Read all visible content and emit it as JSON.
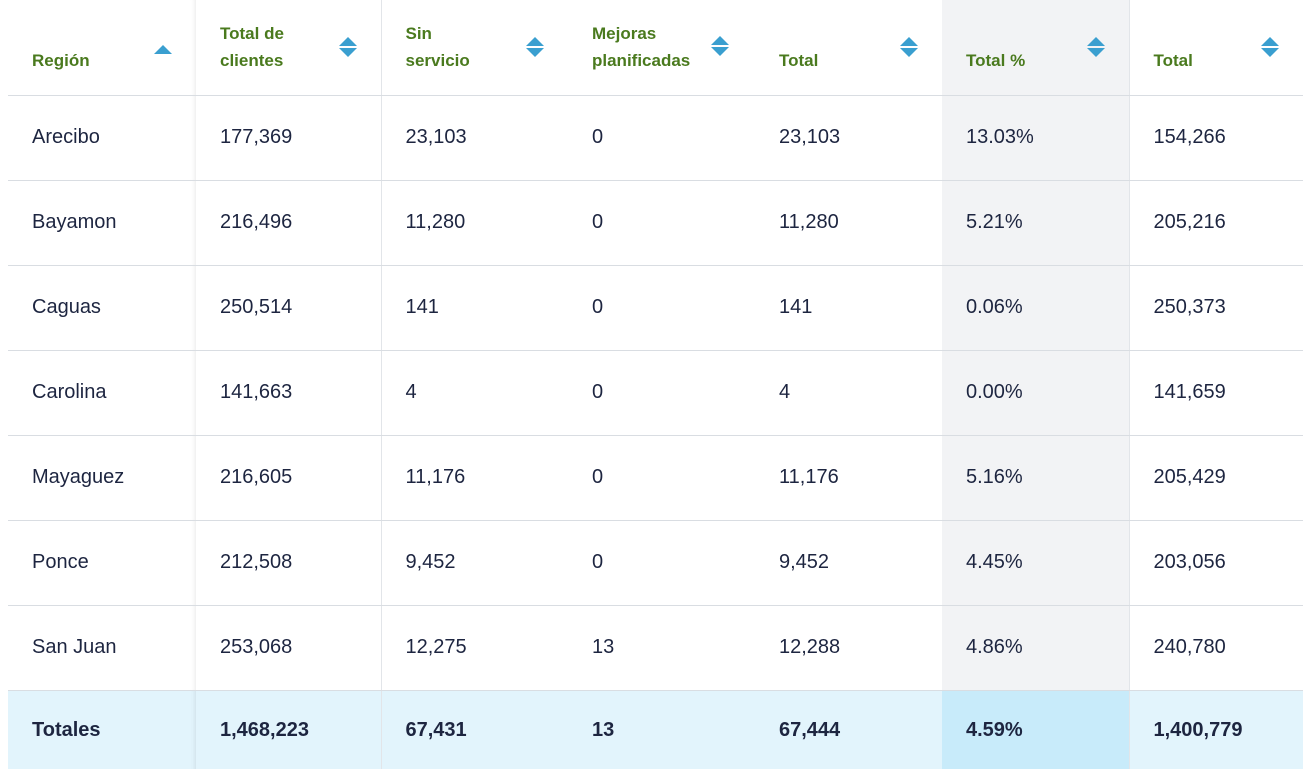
{
  "table": {
    "columns": [
      {
        "label": "Región"
      },
      {
        "label": "Total de clientes"
      },
      {
        "label": "Sin servicio"
      },
      {
        "label": "Mejoras planificadas"
      },
      {
        "label": "Total"
      },
      {
        "label": "Total %"
      },
      {
        "label": "Total"
      }
    ],
    "rows": [
      {
        "region": "Arecibo",
        "clients": "177,369",
        "no_service": "23,103",
        "planned": "0",
        "total": "23,103",
        "pct": "13.03%",
        "total2": "154,266"
      },
      {
        "region": "Bayamon",
        "clients": "216,496",
        "no_service": "11,280",
        "planned": "0",
        "total": "11,280",
        "pct": "5.21%",
        "total2": "205,216"
      },
      {
        "region": "Caguas",
        "clients": "250,514",
        "no_service": "141",
        "planned": "0",
        "total": "141",
        "pct": "0.06%",
        "total2": "250,373"
      },
      {
        "region": "Carolina",
        "clients": "141,663",
        "no_service": "4",
        "planned": "0",
        "total": "4",
        "pct": "0.00%",
        "total2": "141,659"
      },
      {
        "region": "Mayaguez",
        "clients": "216,605",
        "no_service": "11,176",
        "planned": "0",
        "total": "11,176",
        "pct": "5.16%",
        "total2": "205,429"
      },
      {
        "region": "Ponce",
        "clients": "212,508",
        "no_service": "9,452",
        "planned": "0",
        "total": "9,452",
        "pct": "4.45%",
        "total2": "203,056"
      },
      {
        "region": "San Juan",
        "clients": "253,068",
        "no_service": "12,275",
        "planned": "13",
        "total": "12,288",
        "pct": "4.86%",
        "total2": "240,780"
      }
    ],
    "totals": {
      "region": "Totales",
      "clients": "1,468,223",
      "no_service": "67,431",
      "planned": "13",
      "total": "67,444",
      "pct": "4.59%",
      "total2": "1,400,779"
    }
  },
  "colors": {
    "header_text": "#4a7a1e",
    "sort_icon": "#3a9fd0",
    "body_text": "#1d2540",
    "totals_bg": "#e2f4fc",
    "highlight_col": "#f2f3f5"
  }
}
